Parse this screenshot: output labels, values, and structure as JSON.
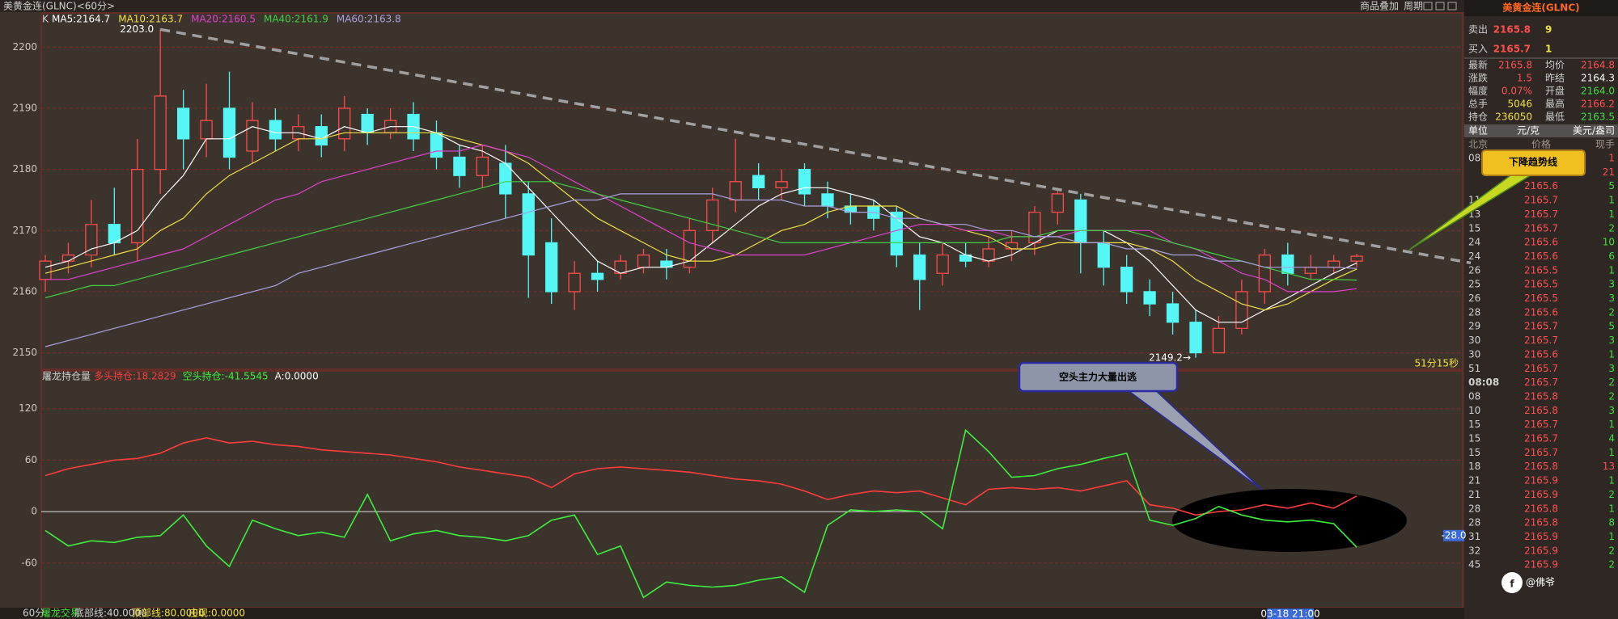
{
  "window": {
    "title": "美黄金连(GLNC)<60分>",
    "buttons": [
      "商品叠加",
      "周期"
    ]
  },
  "chart_data": [
    {
      "type": "candlestick",
      "legend_prefix": "K",
      "up_color": "#ff4a4a",
      "down_color": "#54f6f6",
      "open": [
        2162,
        2165,
        2166,
        2171,
        2168,
        2180,
        2190,
        2185,
        2190,
        2183,
        2188,
        2185,
        2187,
        2185,
        2189,
        2186,
        2189,
        2186,
        2182,
        2179,
        2181,
        2176,
        2168,
        2160,
        2163,
        2163,
        2164,
        2165,
        2164,
        2170,
        2175,
        2179,
        2177,
        2180,
        2176,
        2174,
        2174,
        2173,
        2166,
        2163,
        2166,
        2165,
        2167,
        2168,
        2173,
        2175,
        2168,
        2164,
        2160,
        2158,
        2155,
        2150,
        2154,
        2160,
        2166,
        2163,
        2164,
        2165
      ],
      "high": [
        2166,
        2168,
        2175,
        2177,
        2185,
        2203,
        2193,
        2194,
        2196,
        2191,
        2190,
        2189,
        2189,
        2192,
        2190,
        2190,
        2191,
        2188,
        2184,
        2184,
        2184,
        2178,
        2172,
        2165,
        2165,
        2166,
        2167,
        2167,
        2172,
        2177,
        2185,
        2181,
        2180,
        2181,
        2178,
        2176,
        2175,
        2174,
        2168,
        2168,
        2168,
        2169,
        2170,
        2174,
        2177,
        2176,
        2170,
        2166,
        2162,
        2160,
        2157,
        2156,
        2162,
        2167,
        2168,
        2166,
        2166,
        2166.2
      ],
      "low": [
        2160,
        2163,
        2164,
        2166,
        2165,
        2176,
        2180,
        2182,
        2180,
        2181,
        2183,
        2183,
        2182,
        2183,
        2184,
        2185,
        2183,
        2180,
        2177,
        2177,
        2172,
        2159,
        2158,
        2157,
        2160,
        2162,
        2163,
        2162,
        2163,
        2168,
        2173,
        2175,
        2175,
        2174,
        2172,
        2171,
        2170,
        2164,
        2157,
        2161,
        2164,
        2164,
        2165,
        2166,
        2171,
        2163,
        2161,
        2158,
        2156,
        2153,
        2149.2,
        2150,
        2153,
        2158,
        2161,
        2162,
        2163,
        2164
      ],
      "close": [
        2165,
        2166,
        2171,
        2168,
        2180,
        2192,
        2185,
        2188,
        2182,
        2188,
        2185,
        2187,
        2184,
        2190,
        2186,
        2188,
        2185,
        2182,
        2179,
        2182,
        2176,
        2166,
        2160,
        2163,
        2162,
        2165,
        2166,
        2164,
        2170,
        2175,
        2178,
        2177,
        2178,
        2176,
        2174,
        2173,
        2172,
        2166,
        2162,
        2166,
        2165,
        2167,
        2168,
        2173,
        2176,
        2168,
        2164,
        2160,
        2158,
        2155,
        2150,
        2154,
        2160,
        2166,
        2163,
        2164,
        2165,
        2165.8
      ],
      "series": [
        {
          "name": "MA5:2164.7",
          "color": "#ffffff",
          "values": [
            2164,
            2165,
            2167,
            2168,
            2170,
            2175,
            2179,
            2185,
            2185,
            2187,
            2186,
            2186,
            2185,
            2187,
            2186,
            2187,
            2187,
            2186,
            2184,
            2183,
            2181,
            2177,
            2173,
            2169,
            2165,
            2163,
            2164,
            2164,
            2165,
            2168,
            2171,
            2174,
            2176,
            2177,
            2177,
            2176,
            2175,
            2172,
            2169,
            2168,
            2166,
            2165,
            2166,
            2168,
            2170,
            2170,
            2170,
            2168,
            2165,
            2161,
            2157,
            2155,
            2155,
            2157,
            2159,
            2161,
            2163,
            2164.7
          ]
        },
        {
          "name": "MA10:2163.7",
          "color": "#f0e040",
          "values": [
            2163,
            2164,
            2165,
            2166,
            2167,
            2170,
            2172,
            2176,
            2179,
            2181,
            2183,
            2185,
            2185,
            2186,
            2186,
            2186,
            2186,
            2186,
            2185,
            2184,
            2183,
            2181,
            2178,
            2175,
            2172,
            2170,
            2168,
            2166,
            2165,
            2165,
            2166,
            2168,
            2170,
            2171,
            2173,
            2174,
            2174,
            2174,
            2172,
            2171,
            2170,
            2169,
            2167,
            2167,
            2168,
            2168,
            2168,
            2168,
            2167,
            2165,
            2162,
            2160,
            2158,
            2157,
            2158,
            2160,
            2162,
            2163.7
          ]
        },
        {
          "name": "MA20:2160.5",
          "color": "#e040d0",
          "values": [
            2162,
            2162,
            2163,
            2164,
            2165,
            2166,
            2167,
            2169,
            2171,
            2173,
            2175,
            2176,
            2178,
            2179,
            2180,
            2181,
            2182,
            2183,
            2183,
            2184,
            2183,
            2182,
            2180,
            2178,
            2176,
            2174,
            2172,
            2170,
            2168,
            2167,
            2166,
            2166,
            2166,
            2166,
            2167,
            2168,
            2169,
            2170,
            2171,
            2171,
            2170,
            2170,
            2169,
            2169,
            2169,
            2170,
            2170,
            2170,
            2170,
            2168,
            2167,
            2165,
            2163,
            2162,
            2160,
            2160,
            2160,
            2160.5
          ]
        },
        {
          "name": "MA40:2161.9",
          "color": "#40d040",
          "values": [
            2159,
            2160,
            2161,
            2161,
            2162,
            2163,
            2164,
            2165,
            2166,
            2167,
            2168,
            2169,
            2170,
            2171,
            2172,
            2173,
            2174,
            2175,
            2176,
            2177,
            2178,
            2178,
            2178,
            2177,
            2176,
            2175,
            2174,
            2173,
            2172,
            2171,
            2170,
            2169,
            2168,
            2168,
            2168,
            2168,
            2168,
            2168,
            2168,
            2168,
            2168,
            2168,
            2169,
            2169,
            2170,
            2170,
            2170,
            2170,
            2169,
            2168,
            2167,
            2166,
            2165,
            2164,
            2163,
            2162,
            2162,
            2161.9
          ]
        },
        {
          "name": "MA60:2163.8",
          "color": "#a8a0e0",
          "values": [
            2151,
            2152,
            2153,
            2154,
            2155,
            2156,
            2157,
            2158,
            2159,
            2160,
            2161,
            2163,
            2164,
            2165,
            2166,
            2167,
            2168,
            2169,
            2170,
            2171,
            2172,
            2173,
            2174,
            2175,
            2175,
            2176,
            2176,
            2176,
            2176,
            2176,
            2175,
            2175,
            2175,
            2174,
            2174,
            2173,
            2173,
            2172,
            2172,
            2171,
            2171,
            2170,
            2170,
            2169,
            2169,
            2168,
            2168,
            2167,
            2167,
            2166,
            2166,
            2165,
            2165,
            2164,
            2164,
            2164,
            2164,
            2163.8
          ]
        }
      ],
      "ylim": [
        2147.3,
        2205.6
      ],
      "yticks": [
        2150,
        2160,
        2170,
        2180,
        2190,
        2200
      ],
      "grid": true,
      "high_label": "2203.0",
      "low_label": "2149.2→",
      "countdown": "51分15秒",
      "trendline": {
        "values": [
          2202.9,
          2164.7
        ],
        "color": "#a0a0a0",
        "label": "下降趋势线"
      }
    },
    {
      "type": "line",
      "title": "屠龙持仓量",
      "series": [
        {
          "name": "多头持仓:18.2829",
          "color": "#ff3c3c",
          "values": [
            42,
            50,
            55,
            60,
            62,
            68,
            80,
            86,
            80,
            82,
            78,
            76,
            72,
            70,
            68,
            66,
            62,
            58,
            52,
            48,
            44,
            40,
            28,
            44,
            50,
            52,
            50,
            48,
            46,
            42,
            38,
            36,
            32,
            24,
            14,
            20,
            24,
            22,
            24,
            16,
            8,
            26,
            28,
            26,
            28,
            24,
            30,
            36,
            8,
            4,
            -4,
            0,
            2,
            8,
            4,
            10,
            4,
            18.2829
          ]
        },
        {
          "name": "空头持仓:-41.5545",
          "color": "#3cf03c",
          "values": [
            -22,
            -40,
            -34,
            -36,
            -30,
            -28,
            -4,
            -40,
            -64,
            -10,
            -20,
            -28,
            -24,
            -30,
            20,
            -34,
            -26,
            -22,
            -28,
            -30,
            -34,
            -28,
            -10,
            -4,
            -50,
            -40,
            -100,
            -82,
            -86,
            -88,
            -86,
            -80,
            -76,
            -94,
            -16,
            2,
            0,
            2,
            0,
            -20,
            95,
            70,
            40,
            42,
            50,
            55,
            62,
            68,
            -10,
            -16,
            -8,
            6,
            -4,
            -10,
            -12,
            -10,
            -14,
            -41.5545
          ]
        }
      ],
      "extra_legend": "A:0.0000",
      "ylim": [
        -112,
        164
      ],
      "yticks": [
        -60,
        0,
        60,
        120
      ],
      "annotation": "空头主力大量出逃",
      "current_marker": {
        "value": -28,
        "label": "-28.0"
      }
    }
  ],
  "footer": {
    "period": "60分",
    "indicator": "屠龙交易",
    "bottom_line": "底部线:40.0000",
    "top_line": "顶部线:80.0000",
    "z": "庄现:0.0000",
    "cursor_time": "03-18 21:00"
  },
  "quote_panel": {
    "title": "美黄金连(GLNC)",
    "sell": {
      "label": "卖出",
      "price": "2165.8",
      "volume": "9"
    },
    "buy": {
      "label": "买入",
      "price": "2165.7",
      "volume": "1"
    },
    "stats": [
      [
        "最新",
        "2165.8",
        "均价",
        "2164.8"
      ],
      [
        "涨跌",
        "1.5",
        "昨结",
        "2164.3"
      ],
      [
        "幅度",
        "0.07%",
        "开盘",
        "2164.0"
      ],
      [
        "总手",
        "5046",
        "最高",
        "2166.2"
      ],
      [
        "持仓",
        "236050",
        "最低",
        "2163.5"
      ]
    ],
    "unit": [
      "单位",
      "元/克",
      "美元/盎司"
    ],
    "tick_header": [
      "北京",
      "价格",
      "现手"
    ],
    "ticks": [
      [
        "08",
        null,
        "1"
      ],
      [
        null,
        null,
        "21"
      ],
      [
        null,
        "2165.6",
        "5"
      ],
      [
        "11",
        "2165.7",
        "1"
      ],
      [
        "13",
        "2165.7",
        "1"
      ],
      [
        "15",
        "2165.7",
        "2"
      ],
      [
        "24",
        "2165.6",
        "10"
      ],
      [
        "24",
        "2165.6",
        "6"
      ],
      [
        "26",
        "2165.5",
        "1"
      ],
      [
        "25",
        "2165.5",
        "3"
      ],
      [
        "26",
        "2165.5",
        "3"
      ],
      [
        "28",
        "2165.6",
        "2"
      ],
      [
        "29",
        "2165.7",
        "5"
      ],
      [
        "30",
        "2165.7",
        "3"
      ],
      [
        "30",
        "2165.6",
        "1"
      ],
      [
        "51",
        "2165.7",
        "3"
      ],
      [
        "08:08",
        "2165.7",
        "2"
      ],
      [
        "08",
        "2165.8",
        "2"
      ],
      [
        "10",
        "2165.8",
        "3"
      ],
      [
        "15",
        "2165.7",
        "1"
      ],
      [
        "15",
        "2165.7",
        "4"
      ],
      [
        "15",
        "2165.7",
        "1"
      ],
      [
        "18",
        "2165.8",
        "13"
      ],
      [
        "21",
        "2165.9",
        "1"
      ],
      [
        "21",
        "2165.9",
        "2"
      ],
      [
        "28",
        "2165.8",
        "1"
      ],
      [
        "28",
        "2165.8",
        "8"
      ],
      [
        "31",
        "2165.9",
        "1"
      ],
      [
        "32",
        "2165.9",
        "2"
      ],
      [
        "45",
        "2165.9",
        "2"
      ]
    ]
  },
  "watermark": "@佛爷"
}
